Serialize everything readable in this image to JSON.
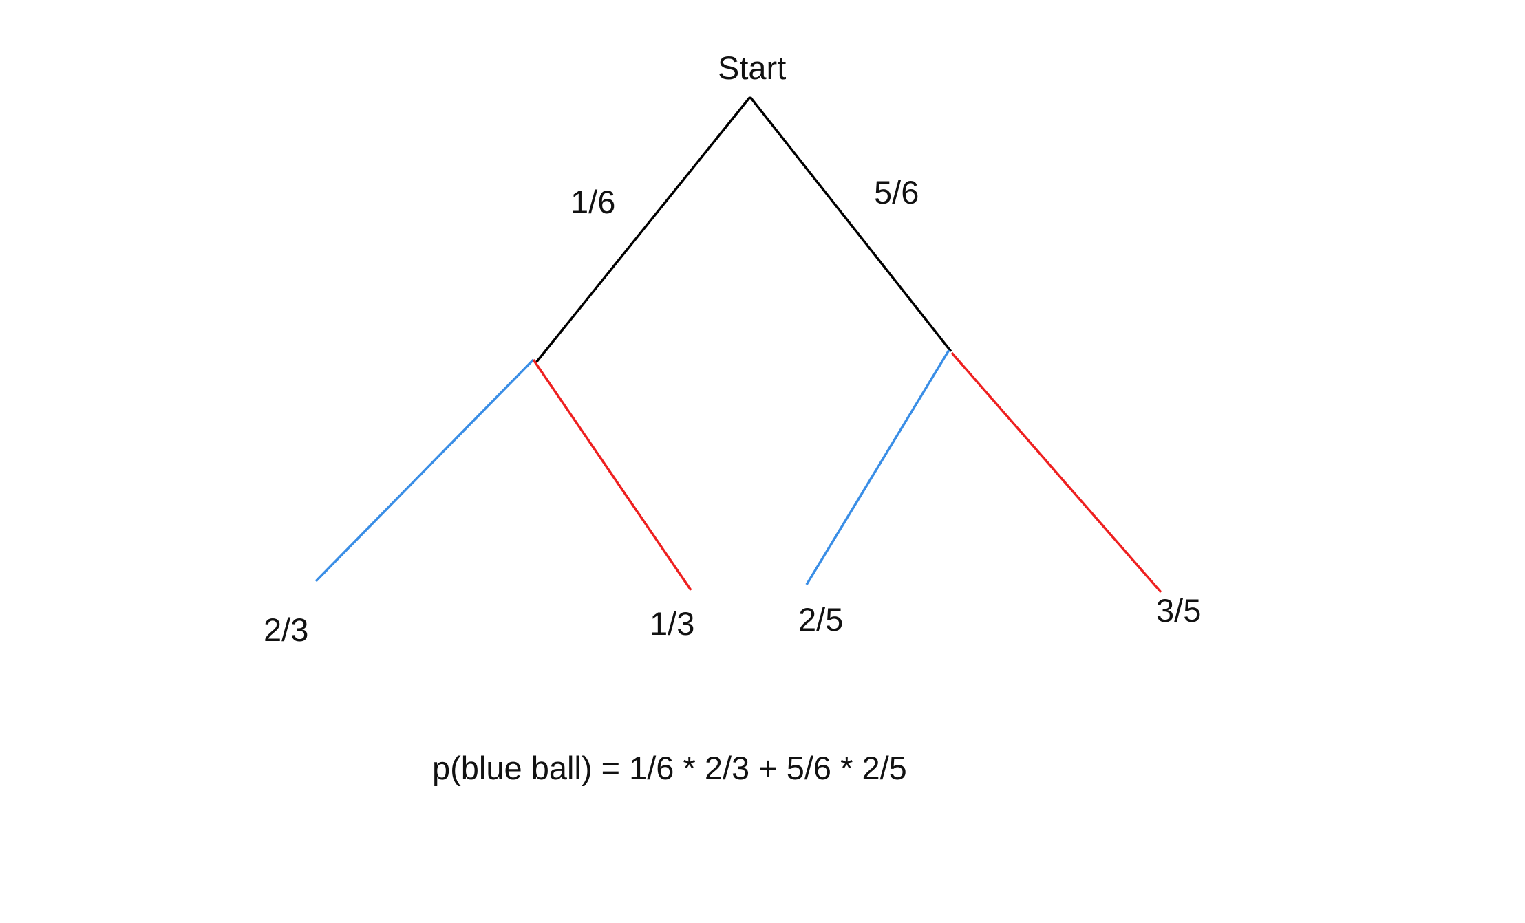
{
  "root": {
    "label": "Start"
  },
  "branches": {
    "first_left": "1/6",
    "first_right": "5/6",
    "left_blue": "2/3",
    "left_red": "1/3",
    "right_blue": "2/5",
    "right_red": "3/5"
  },
  "formula": "p(blue ball) = 1/6 * 2/3 + 5/6 * 2/5",
  "colors": {
    "trunk": "#000000",
    "blue_branch": "#3a8ee6",
    "red_branch": "#ee2020"
  }
}
